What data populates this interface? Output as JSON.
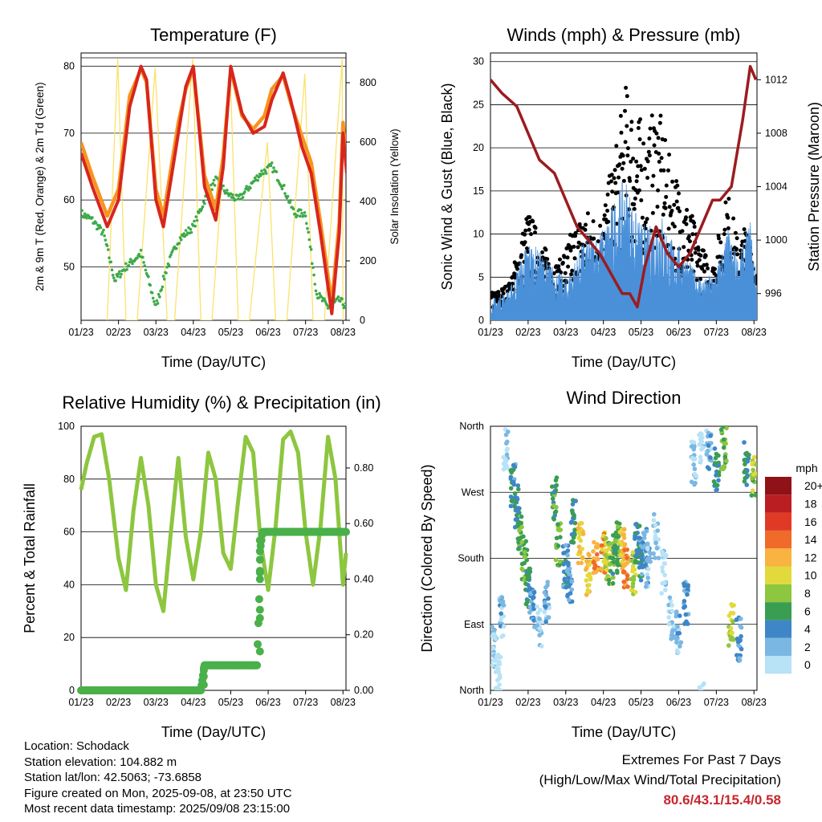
{
  "x_ticks": [
    "01/23",
    "02/23",
    "03/23",
    "04/23",
    "05/23",
    "06/23",
    "07/23",
    "08/23"
  ],
  "panels": {
    "temperature": {
      "title": "Temperature (F)",
      "ylabel": "2m & 9m T (Red, Orange) & 2m Td (Green)",
      "y2label": "Solar Insolation (Yellow)",
      "xlabel": "Time (Day/UTC)",
      "yticks": [
        "50",
        "60",
        "70",
        "80"
      ],
      "y2ticks": [
        "0",
        "200",
        "400",
        "600",
        "800"
      ]
    },
    "winds": {
      "title": "Winds (mph) & Pressure (mb)",
      "ylabel": "Sonic Wind & Gust (Blue, Black)",
      "y2label": "Station Pressure (Maroon)",
      "xlabel": "Time (Day/UTC)",
      "yticks": [
        "0",
        "5",
        "10",
        "15",
        "20",
        "25",
        "30"
      ],
      "y2ticks": [
        "996",
        "1000",
        "1004",
        "1008",
        "1012"
      ]
    },
    "humidity": {
      "title": "Relative Humidity (%) & Precipitation (in)",
      "ylabel": "Percent & Total Rainfall",
      "xlabel": "Time (Day/UTC)",
      "yticks": [
        "0",
        "20",
        "40",
        "60",
        "80",
        "100"
      ],
      "y2ticks": [
        "0.00",
        "0.20",
        "0.40",
        "0.60",
        "0.80"
      ]
    },
    "direction": {
      "title": "Wind Direction",
      "ylabel": "Direction (Colored By Speed)",
      "xlabel": "Time (Day/UTC)",
      "yticks": [
        "North",
        "East",
        "South",
        "West",
        "North"
      ],
      "legend_title": "mph",
      "legend_labels": [
        "0",
        "2",
        "4",
        "6",
        "8",
        "10",
        "12",
        "14",
        "16",
        "18",
        "20+"
      ],
      "legend_colors": [
        "#b8e2f6",
        "#7ab8e3",
        "#3f86c6",
        "#3a9e52",
        "#8dc63f",
        "#e2d93c",
        "#f8b341",
        "#f06a2b",
        "#e03a27",
        "#bb1e22",
        "#8f1218"
      ]
    }
  },
  "chart_data": [
    {
      "type": "line",
      "title": "Temperature (F)",
      "xlabel": "Time (Day/UTC)",
      "ylabel": "2m & 9m T (Red, Orange) & 2m Td (Green)",
      "y2label": "Solar Insolation (Yellow)",
      "ylim": [
        42,
        82
      ],
      "y2lim": [
        0,
        900
      ],
      "x": [
        "01/23",
        "02/23",
        "03/23",
        "04/23",
        "05/23",
        "06/23",
        "07/23",
        "08/23"
      ],
      "series": [
        {
          "color": "#d7261e",
          "axis": "left",
          "x": [
            0,
            0.3,
            0.7,
            1,
            1.3,
            1.6,
            1.75,
            2,
            2.2,
            2.6,
            2.8,
            3,
            3.3,
            3.6,
            3.8,
            4,
            4.3,
            4.6,
            4.9,
            5.1,
            5.4,
            5.6,
            5.9,
            6.15,
            6.4,
            6.7,
            6.9,
            7,
            7.1
          ],
          "values": [
            67,
            62,
            56,
            60,
            74,
            80,
            78,
            60,
            56,
            70,
            77,
            80,
            62,
            57,
            65,
            80,
            73,
            70,
            71,
            75,
            79,
            75,
            68,
            64,
            55,
            43,
            55,
            70,
            64
          ]
        },
        {
          "color": "#f7941e",
          "axis": "left",
          "x": [
            0,
            0.3,
            0.7,
            1,
            1.3,
            1.6,
            1.75,
            2,
            2.2,
            2.6,
            2.8,
            3,
            3.3,
            3.6,
            3.8,
            4,
            4.3,
            4.6,
            4.9,
            5.1,
            5.4,
            5.6,
            5.9,
            6.15,
            6.4,
            6.7,
            6.9,
            7,
            7.1
          ],
          "values": [
            68,
            63,
            57,
            61,
            75,
            79,
            77,
            61,
            57,
            71,
            76,
            79,
            63,
            58,
            66,
            79,
            72,
            70,
            72,
            76,
            78,
            74,
            69,
            65,
            56,
            44,
            56,
            71,
            65
          ]
        },
        {
          "color": "#3daa49",
          "axis": "left",
          "x": [
            0,
            0.3,
            0.6,
            0.9,
            1.2,
            1.6,
            2,
            2.3,
            2.6,
            3,
            3.3,
            3.6,
            3.9,
            4.2,
            4.5,
            4.8,
            5.1,
            5.4,
            5.7,
            6,
            6.3,
            6.6,
            6.9,
            7.1
          ],
          "values": [
            58,
            57,
            55,
            48,
            50,
            52,
            44,
            50,
            54,
            56,
            60,
            63,
            61,
            60,
            62,
            64,
            65,
            62,
            58,
            58,
            46,
            44,
            45,
            44
          ]
        },
        {
          "color": "#fbe26a",
          "axis": "right",
          "name": "",
          "x": [
            0.7,
            0.98,
            1.2,
            1.5,
            1.98,
            2.3,
            2.5,
            2.98,
            3.2,
            3.5,
            3.98,
            4.2,
            4.5,
            4.98,
            5.2,
            5.5,
            5.98,
            6.2,
            6.5,
            6.98,
            7.0
          ],
          "values": [
            0,
            880,
            0,
            0,
            850,
            0,
            0,
            880,
            0,
            0,
            860,
            0,
            0,
            600,
            0,
            0,
            830,
            0,
            0,
            880,
            0
          ]
        }
      ]
    },
    {
      "type": "scatter",
      "title": "Winds (mph) & Pressure (mb)",
      "xlabel": "Time (Day/UTC)",
      "ylabel": "Sonic Wind & Gust (Blue, Black)",
      "y2label": "Station Pressure (Maroon)",
      "ylim": [
        0,
        31
      ],
      "y2lim": [
        994,
        1014
      ],
      "series": [
        {
          "color": "#000000",
          "type": "scatter",
          "x": [
            0.1,
            0.5,
            1.0,
            1.4,
            1.8,
            2.2,
            2.5,
            2.9,
            3.1,
            3.3,
            3.6,
            3.9,
            4.2,
            4.4,
            4.7,
            5.0,
            5.3,
            5.6,
            5.9,
            6.1,
            6.3,
            6.6,
            6.9,
            7.0
          ],
          "values": [
            3,
            4,
            12,
            8,
            6,
            10,
            12,
            11,
            14,
            18,
            25,
            22,
            20,
            24,
            18,
            15,
            12,
            8,
            6,
            10,
            14,
            8,
            12,
            5
          ]
        },
        {
          "color": "#4a90d9",
          "type": "area",
          "x": [
            0,
            0.5,
            1.0,
            1.5,
            2.0,
            2.5,
            3.0,
            3.3,
            3.6,
            3.9,
            4.2,
            4.5,
            4.8,
            5.1,
            5.4,
            5.7,
            6.0,
            6.3,
            6.6,
            6.9,
            7.1
          ],
          "values": [
            2,
            3,
            8,
            6,
            4,
            8,
            9,
            12,
            14,
            10,
            9,
            11,
            8,
            7,
            5,
            4,
            5,
            9,
            6,
            10,
            3
          ]
        },
        {
          "color": "#9b1c1f",
          "type": "line",
          "axis": "right",
          "x": [
            0,
            0.3,
            0.7,
            1.0,
            1.3,
            1.7,
            2.0,
            2.3,
            2.6,
            2.9,
            3.1,
            3.3,
            3.5,
            3.7,
            3.9,
            4.1,
            4.4,
            4.7,
            5.0,
            5.3,
            5.6,
            5.9,
            6.1,
            6.4,
            6.7,
            6.9,
            7.05
          ],
          "values": [
            1012,
            1011,
            1010,
            1008,
            1006,
            1005,
            1003,
            1001,
            1000,
            999,
            998,
            997,
            996,
            996,
            995,
            998,
            1001,
            999,
            998,
            999,
            1001,
            1003,
            1003,
            1004,
            1009,
            1013,
            1012
          ]
        }
      ]
    },
    {
      "type": "line",
      "title": "Relative Humidity (%) & Precipitation (in)",
      "xlabel": "Time (Day/UTC)",
      "ylabel": "Percent & Total Rainfall",
      "ylim": [
        0,
        100
      ],
      "y2lim": [
        0,
        0.95
      ],
      "series": [
        {
          "color": "#8dc63f",
          "axis": "left",
          "x": [
            0,
            0.15,
            0.35,
            0.55,
            0.75,
            1.0,
            1.2,
            1.4,
            1.6,
            1.8,
            2.0,
            2.2,
            2.4,
            2.6,
            2.8,
            3.0,
            3.2,
            3.4,
            3.6,
            3.8,
            4.0,
            4.2,
            4.4,
            4.6,
            4.8,
            5.0,
            5.2,
            5.4,
            5.6,
            5.8,
            6.0,
            6.2,
            6.4,
            6.6,
            6.8,
            7.0,
            7.1
          ],
          "values": [
            76,
            86,
            96,
            97,
            80,
            50,
            38,
            68,
            88,
            70,
            40,
            30,
            60,
            88,
            58,
            42,
            60,
            90,
            80,
            52,
            46,
            72,
            96,
            90,
            56,
            38,
            62,
            95,
            98,
            90,
            60,
            40,
            62,
            96,
            80,
            40,
            55
          ]
        },
        {
          "color": "#4ab04a",
          "axis": "right",
          "x": [
            0,
            0.5,
            1,
            1.5,
            2,
            2.5,
            3,
            3.2,
            3.3,
            3.5,
            4,
            4.5,
            4.7,
            4.75,
            4.8,
            4.85,
            5,
            5.5,
            6,
            6.5,
            7,
            7.1
          ],
          "values": [
            0,
            0,
            0,
            0,
            0,
            0,
            0,
            0,
            0.09,
            0.09,
            0.09,
            0.09,
            0.09,
            0.28,
            0.52,
            0.57,
            0.57,
            0.57,
            0.57,
            0.57,
            0.57,
            0.57
          ]
        }
      ]
    },
    {
      "type": "scatter",
      "title": "Wind Direction",
      "xlabel": "Time (Day/UTC)",
      "ylabel": "Direction (Colored By Speed)",
      "ylim": [
        0,
        360
      ],
      "y_categories": [
        "North",
        "East",
        "South",
        "West",
        "North"
      ],
      "legend": {
        "title": "mph",
        "labels": [
          "0",
          "2",
          "4",
          "6",
          "8",
          "10",
          "12",
          "14",
          "16",
          "18",
          "20+"
        ]
      },
      "series": [
        {
          "name": "",
          "type": "scatter",
          "x": [
            0.1,
            0.2,
            0.3,
            0.4,
            0.6,
            0.7,
            0.8,
            0.9,
            1.0,
            1.1,
            1.3,
            1.5,
            1.7,
            1.8,
            2.0,
            2.1,
            2.2,
            2.4,
            2.6,
            2.8,
            3.0,
            3.1,
            3.2,
            3.3,
            3.4,
            3.5,
            3.6,
            3.8,
            3.9,
            4.0,
            4.1,
            4.2,
            4.4,
            4.6,
            4.8,
            5.0,
            5.2,
            5.4,
            5.6,
            5.8,
            6.0,
            6.2,
            6.4,
            6.6,
            6.8,
            7.0
          ],
          "values": [
            60,
            20,
            100,
            330,
            280,
            250,
            220,
            180,
            140,
            110,
            90,
            120,
            260,
            200,
            170,
            150,
            230,
            200,
            160,
            180,
            190,
            180,
            175,
            185,
            200,
            190,
            170,
            160,
            200,
            180,
            190,
            170,
            210,
            160,
            100,
            80,
            120,
            310,
            340,
            330,
            300,
            330,
            90,
            70,
            310,
            290
          ],
          "speeds": [
            2,
            0,
            3,
            1,
            5,
            6,
            7,
            8,
            6,
            4,
            2,
            3,
            7,
            8,
            5,
            4,
            6,
            12,
            12,
            14,
            13,
            10,
            9,
            7,
            8,
            12,
            14,
            10,
            6,
            5,
            4,
            3,
            2,
            1,
            2,
            3,
            4,
            2,
            1,
            3,
            6,
            8,
            10,
            4,
            6,
            9
          ]
        }
      ]
    }
  ],
  "footer": {
    "location": "Location: Schodack",
    "elevation": "Station elevation: 104.882 m",
    "latlon": "Station lat/lon: 42.5063; -73.6858",
    "created": "Figure created on Mon, 2025-09-08, at 23:50 UTC",
    "recent": "Most recent data timestamp: 2025/09/08 23:15:00",
    "extremes_title": "Extremes For Past 7 Days",
    "extremes_sub": "(High/Low/Max Wind/Total Precipitation)",
    "extremes_values": "80.6/43.1/15.4/0.58"
  }
}
